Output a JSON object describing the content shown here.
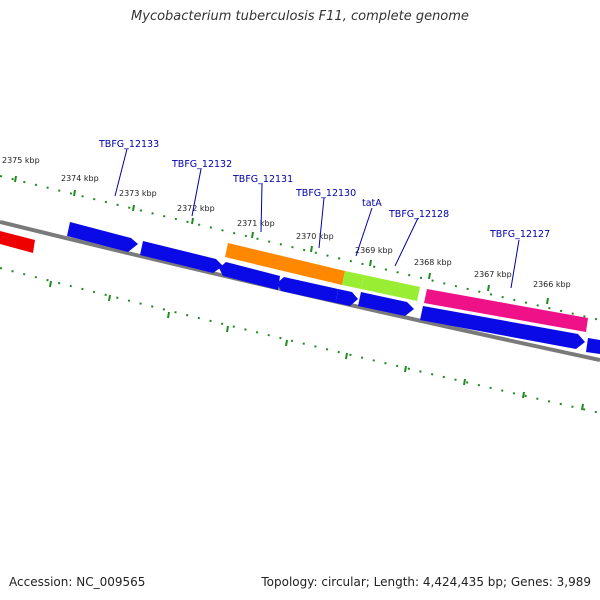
{
  "title": "Mycobacterium tuberculosis F11, complete genome",
  "footer": {
    "accession": "Accession: NC_009565",
    "genome_info": "Topology: circular; Length: 4,424,435 bp; Genes: 3,989"
  },
  "colors": {
    "backbone": "#7a7a7a",
    "ticks": "#1f8a1f",
    "gene_blue": "#0a0ae6",
    "gene_orange": "#ff8800",
    "gene_lime": "#99ee33",
    "gene_pink": "#ee1188",
    "gene_red": "#ee0000",
    "label_blue": "#0000aa"
  },
  "kbp_labels": [
    "2375 kbp",
    "2374 kbp",
    "2373 kbp",
    "2372 kbp",
    "2371 kbp",
    "2370 kbp",
    "2369 kbp",
    "2368 kbp",
    "2367 kbp",
    "2366 kbp"
  ],
  "gene_labels": [
    "TBFG_12133",
    "TBFG_12132",
    "TBFG_12131",
    "TBFG_12130",
    "tatA",
    "TBFG_12128",
    "TBFG_12127"
  ]
}
